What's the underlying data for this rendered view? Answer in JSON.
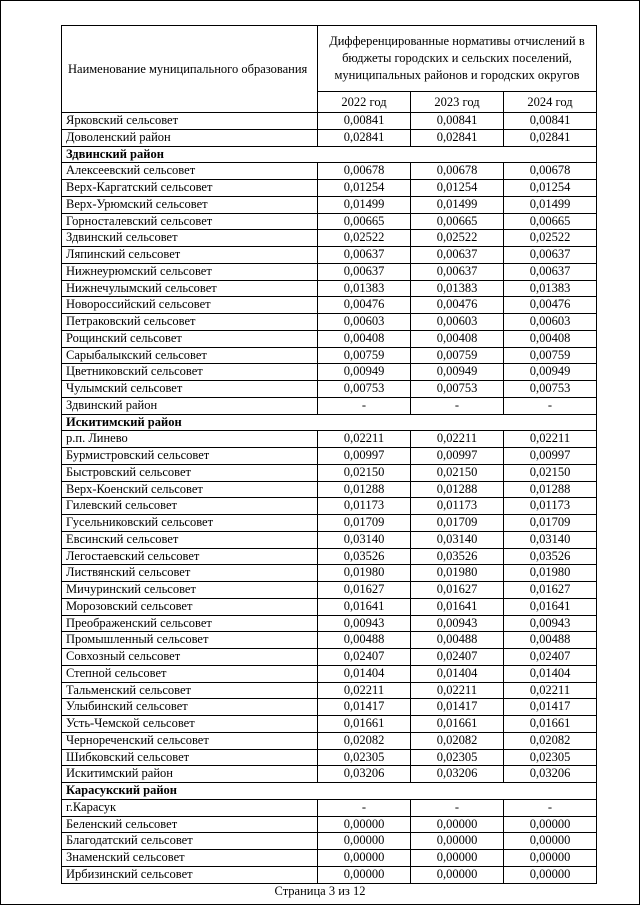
{
  "page": {
    "footer": "Страница 3 из 12"
  },
  "table": {
    "header": {
      "name_col": "Наименование муниципального образования",
      "norm_col": "Дифференцированные нормативы отчислений в бюджеты городских и сельских поселений, муниципальных районов и городских округов",
      "years": [
        "2022 год",
        "2023 год",
        "2024 год"
      ]
    },
    "rows": [
      {
        "type": "data",
        "name": "Ярковский сельсовет",
        "values": [
          "0,00841",
          "0,00841",
          "0,00841"
        ]
      },
      {
        "type": "data",
        "name": "Доволенский район",
        "values": [
          "0,02841",
          "0,02841",
          "0,02841"
        ]
      },
      {
        "type": "section",
        "name": "Здвинский район"
      },
      {
        "type": "data",
        "name": "Алексеевский сельсовет",
        "values": [
          "0,00678",
          "0,00678",
          "0,00678"
        ]
      },
      {
        "type": "data",
        "name": "Верх-Каргатский сельсовет",
        "values": [
          "0,01254",
          "0,01254",
          "0,01254"
        ]
      },
      {
        "type": "data",
        "name": "Верх-Урюмский сельсовет",
        "values": [
          "0,01499",
          "0,01499",
          "0,01499"
        ]
      },
      {
        "type": "data",
        "name": "Горносталевский сельсовет",
        "values": [
          "0,00665",
          "0,00665",
          "0,00665"
        ]
      },
      {
        "type": "data",
        "name": "Здвинский сельсовет",
        "values": [
          "0,02522",
          "0,02522",
          "0,02522"
        ]
      },
      {
        "type": "data",
        "name": "Ляпинский сельсовет",
        "values": [
          "0,00637",
          "0,00637",
          "0,00637"
        ]
      },
      {
        "type": "data",
        "name": "Нижнеурюмский сельсовет",
        "values": [
          "0,00637",
          "0,00637",
          "0,00637"
        ]
      },
      {
        "type": "data",
        "name": "Нижнечулымский сельсовет",
        "values": [
          "0,01383",
          "0,01383",
          "0,01383"
        ]
      },
      {
        "type": "data",
        "name": "Новороссийский сельсовет",
        "values": [
          "0,00476",
          "0,00476",
          "0,00476"
        ]
      },
      {
        "type": "data",
        "name": "Петраковский сельсовет",
        "values": [
          "0,00603",
          "0,00603",
          "0,00603"
        ]
      },
      {
        "type": "data",
        "name": "Рощинский сельсовет",
        "values": [
          "0,00408",
          "0,00408",
          "0,00408"
        ]
      },
      {
        "type": "data",
        "name": "Сарыбалыкский сельсовет",
        "values": [
          "0,00759",
          "0,00759",
          "0,00759"
        ]
      },
      {
        "type": "data",
        "name": "Цветниковский сельсовет",
        "values": [
          "0,00949",
          "0,00949",
          "0,00949"
        ]
      },
      {
        "type": "data",
        "name": "Чулымский сельсовет",
        "values": [
          "0,00753",
          "0,00753",
          "0,00753"
        ]
      },
      {
        "type": "data",
        "name": "Здвинский район",
        "values": [
          "-",
          "-",
          "-"
        ]
      },
      {
        "type": "section",
        "name": "Искитимский район"
      },
      {
        "type": "data",
        "name": "р.п. Линево",
        "values": [
          "0,02211",
          "0,02211",
          "0,02211"
        ]
      },
      {
        "type": "data",
        "name": "Бурмистровский сельсовет",
        "values": [
          "0,00997",
          "0,00997",
          "0,00997"
        ]
      },
      {
        "type": "data",
        "name": "Быстровский сельсовет",
        "values": [
          "0,02150",
          "0,02150",
          "0,02150"
        ]
      },
      {
        "type": "data",
        "name": "Верх-Коенский сельсовет",
        "values": [
          "0,01288",
          "0,01288",
          "0,01288"
        ]
      },
      {
        "type": "data",
        "name": "Гилевский сельсовет",
        "values": [
          "0,01173",
          "0,01173",
          "0,01173"
        ]
      },
      {
        "type": "data",
        "name": "Гусельниковский сельсовет",
        "values": [
          "0,01709",
          "0,01709",
          "0,01709"
        ]
      },
      {
        "type": "data",
        "name": "Евсинский сельсовет",
        "values": [
          "0,03140",
          "0,03140",
          "0,03140"
        ]
      },
      {
        "type": "data",
        "name": "Легостаевский сельсовет",
        "values": [
          "0,03526",
          "0,03526",
          "0,03526"
        ]
      },
      {
        "type": "data",
        "name": "Листвянский сельсовет",
        "values": [
          "0,01980",
          "0,01980",
          "0,01980"
        ]
      },
      {
        "type": "data",
        "name": "Мичуринский сельсовет",
        "values": [
          "0,01627",
          "0,01627",
          "0,01627"
        ]
      },
      {
        "type": "data",
        "name": "Морозовский сельсовет",
        "values": [
          "0,01641",
          "0,01641",
          "0,01641"
        ]
      },
      {
        "type": "data",
        "name": "Преображенский сельсовет",
        "values": [
          "0,00943",
          "0,00943",
          "0,00943"
        ]
      },
      {
        "type": "data",
        "name": "Промышленный сельсовет",
        "values": [
          "0,00488",
          "0,00488",
          "0,00488"
        ]
      },
      {
        "type": "data",
        "name": "Совхозный сельсовет",
        "values": [
          "0,02407",
          "0,02407",
          "0,02407"
        ]
      },
      {
        "type": "data",
        "name": "Степной сельсовет",
        "values": [
          "0,01404",
          "0,01404",
          "0,01404"
        ]
      },
      {
        "type": "data",
        "name": "Тальменский сельсовет",
        "values": [
          "0,02211",
          "0,02211",
          "0,02211"
        ]
      },
      {
        "type": "data",
        "name": "Улыбинский сельсовет",
        "values": [
          "0,01417",
          "0,01417",
          "0,01417"
        ]
      },
      {
        "type": "data",
        "name": "Усть-Чемской сельсовет",
        "values": [
          "0,01661",
          "0,01661",
          "0,01661"
        ]
      },
      {
        "type": "data",
        "name": "Чернореченский сельсовет",
        "values": [
          "0,02082",
          "0,02082",
          "0,02082"
        ]
      },
      {
        "type": "data",
        "name": "Шибковский сельсовет",
        "values": [
          "0,02305",
          "0,02305",
          "0,02305"
        ]
      },
      {
        "type": "data",
        "name": "Искитимский район",
        "values": [
          "0,03206",
          "0,03206",
          "0,03206"
        ]
      },
      {
        "type": "section",
        "name": "Карасукский район"
      },
      {
        "type": "data",
        "name": "г.Карасук",
        "values": [
          "-",
          "-",
          "-"
        ]
      },
      {
        "type": "data",
        "name": "Беленский сельсовет",
        "values": [
          "0,00000",
          "0,00000",
          "0,00000"
        ]
      },
      {
        "type": "data",
        "name": "Благодатский сельсовет",
        "values": [
          "0,00000",
          "0,00000",
          "0,00000"
        ]
      },
      {
        "type": "data",
        "name": "Знаменский сельсовет",
        "values": [
          "0,00000",
          "0,00000",
          "0,00000"
        ]
      },
      {
        "type": "data",
        "name": "Ирбизинский сельсовет",
        "values": [
          "0,00000",
          "0,00000",
          "0,00000"
        ]
      }
    ]
  }
}
